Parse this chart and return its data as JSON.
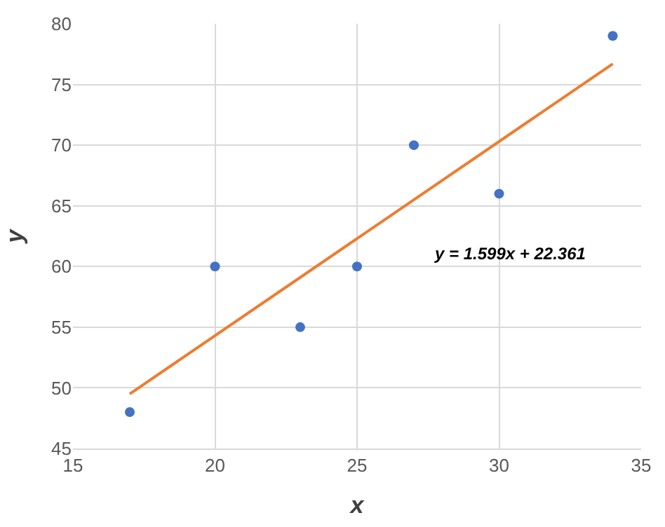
{
  "chart_data": {
    "type": "scatter",
    "xlabel": "x",
    "ylabel": "y",
    "series": [
      {
        "color": "#4472c4",
        "x": [
          17,
          20,
          23,
          25,
          27,
          30,
          34
        ],
        "values": [
          48,
          60,
          55,
          60,
          70,
          66,
          79
        ],
        "marker": "circle"
      },
      {
        "type": "line",
        "color": "#ed7d31",
        "x": [
          17,
          34
        ],
        "values": [
          49.5,
          76.7
        ],
        "marker": "none"
      }
    ],
    "annotations": [
      "y = 1.599x + 22.361"
    ],
    "xlim": [
      15,
      35
    ],
    "xticks": [
      15,
      20,
      25,
      30,
      35
    ],
    "ylim": [
      45,
      80
    ],
    "yticks": [
      45,
      50,
      55,
      60,
      65,
      70,
      75,
      80
    ],
    "grid": true,
    "legend": false
  }
}
